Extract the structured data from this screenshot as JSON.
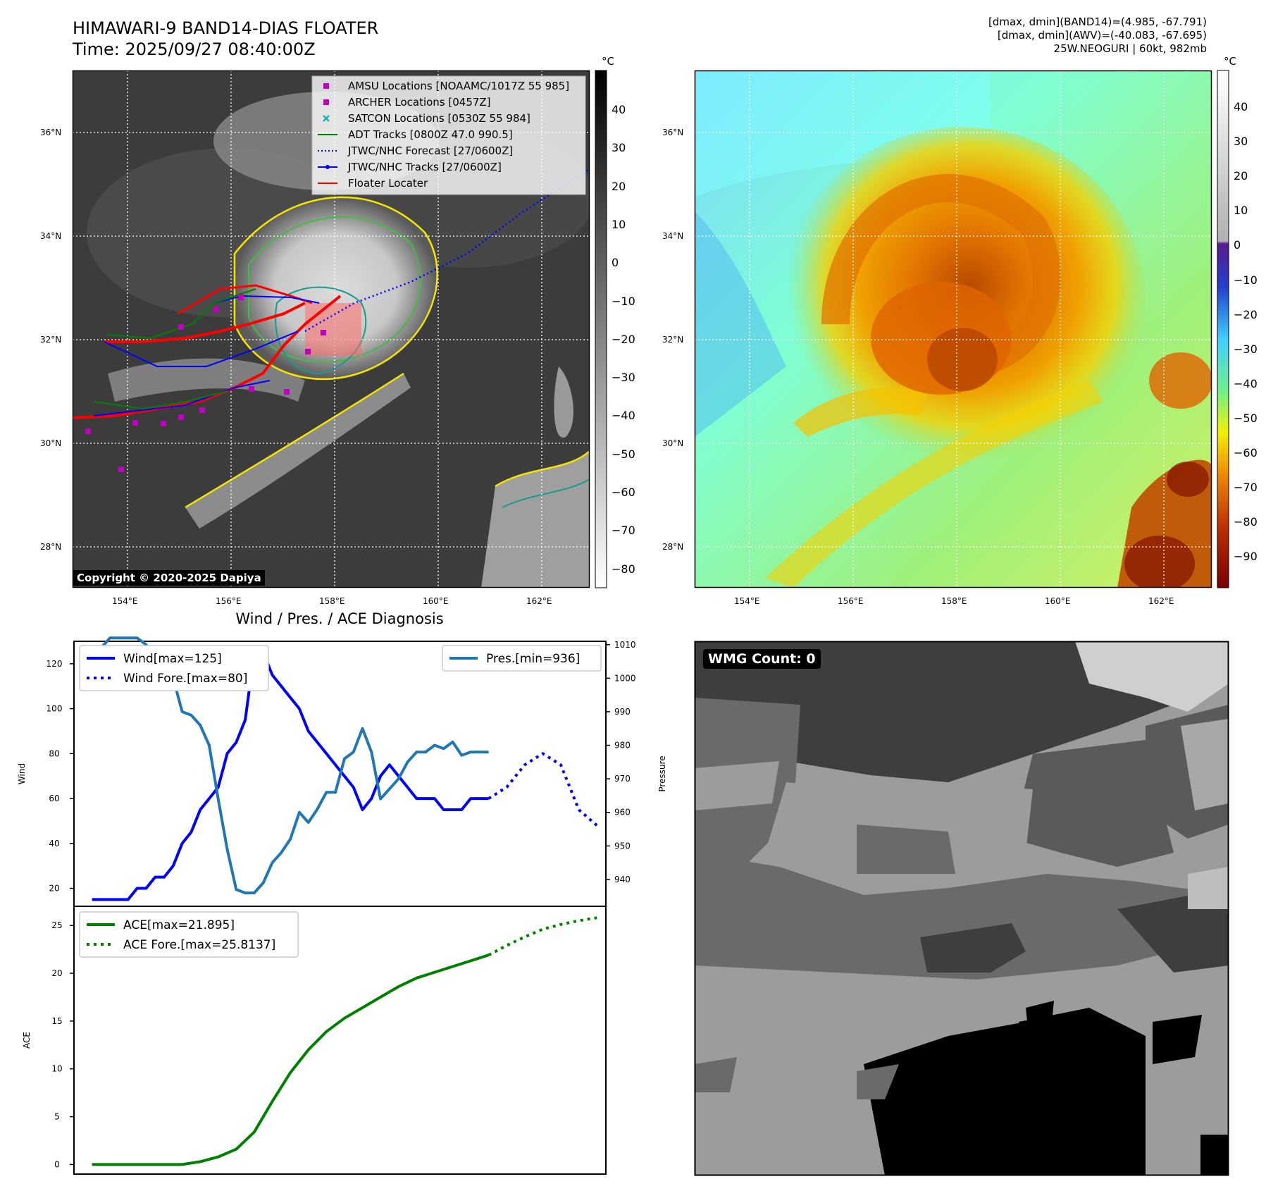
{
  "header": {
    "title_line1": "HIMAWARI-9 BAND14-DIAS FLOATER",
    "title_line2": "Time: 2025/09/27 08:40:00Z",
    "meta_line1": "[dmax, dmin](BAND14)=(4.985, -67.791)",
    "meta_line2": "[dmax, dmin](AWV)=(-40.083, -67.695)",
    "meta_line3": "25W.NEOGURI | 60kt, 982mb"
  },
  "colorbar_left": {
    "unit": "°C",
    "ticks": [
      "40",
      "30",
      "20",
      "10",
      "0",
      "−10",
      "−20",
      "−30",
      "−40",
      "−50",
      "−60",
      "−70",
      "−80"
    ]
  },
  "colorbar_right": {
    "unit": "°C",
    "ticks": [
      "40",
      "30",
      "20",
      "10",
      "0",
      "−10",
      "−20",
      "−30",
      "−40",
      "−50",
      "−60",
      "−70",
      "−80",
      "−90"
    ]
  },
  "map": {
    "lat_labels": [
      "36°N",
      "34°N",
      "32°N",
      "30°N",
      "28°N"
    ],
    "lon_labels": [
      "154°E",
      "156°E",
      "158°E",
      "160°E",
      "162°E"
    ],
    "copyright": "Copyright © 2020-2025 Dapiya",
    "legend": [
      {
        "label": "AMSU Locations [NOAAMC/1017Z 55 985]",
        "color": "#c000c0",
        "marker": "square"
      },
      {
        "label": "ARCHER Locations [0457Z]",
        "color": "#c000c0",
        "marker": "square"
      },
      {
        "label": "SATCON Locations [0530Z 55 984]",
        "color": "#20b0b0",
        "marker": "x"
      },
      {
        "label": "ADT Tracks [0800Z 47.0 990.5]",
        "color": "#008000",
        "marker": "line"
      },
      {
        "label": "JTWC/NHC Forecast [27/0600Z]",
        "color": "#0000ff",
        "marker": "dotted"
      },
      {
        "label": "JTWC/NHC Tracks [27/0600Z]",
        "color": "#0000ff",
        "marker": "line-dot"
      },
      {
        "label": "Floater Locater",
        "color": "#ff0000",
        "marker": "line"
      }
    ]
  },
  "diag": {
    "title": "Wind / Pres. / ACE Diagnosis"
  },
  "wmg": {
    "label": "WMG Count: 0"
  },
  "chart_data": [
    {
      "type": "line",
      "title": "Wind / Pres. / ACE Diagnosis",
      "ylabel": "Wind",
      "y2label": "Pressure",
      "ylim": [
        12,
        130
      ],
      "y2lim": [
        932,
        1011
      ],
      "yticks": [
        20,
        40,
        60,
        80,
        100,
        120
      ],
      "y2ticks": [
        940,
        950,
        960,
        970,
        980,
        990,
        1000,
        1010
      ],
      "series": [
        {
          "name": "Wind[max=125]",
          "axis": "left",
          "style": "solid",
          "color": "#0000ff",
          "x": [
            0,
            1,
            2,
            3,
            4,
            5,
            6,
            7,
            8,
            9,
            10,
            11,
            12,
            13,
            14,
            15,
            16,
            17,
            18,
            19,
            20,
            21,
            22,
            23,
            24,
            25,
            26,
            27,
            28,
            29,
            30,
            31,
            32,
            33,
            34,
            35,
            36,
            37,
            38,
            39,
            40,
            41,
            42,
            43,
            44
          ],
          "values": [
            15,
            15,
            15,
            15,
            15,
            20,
            20,
            25,
            25,
            30,
            40,
            45,
            55,
            60,
            65,
            80,
            85,
            95,
            125,
            125,
            115,
            110,
            105,
            100,
            90,
            85,
            80,
            75,
            70,
            65,
            55,
            60,
            70,
            75,
            70,
            65,
            60,
            60,
            60,
            55,
            55,
            55,
            60,
            60,
            60
          ]
        },
        {
          "name": "Wind Fore.[max=80]",
          "axis": "left",
          "style": "dotted",
          "color": "#0000ff",
          "x": [
            44,
            46,
            48,
            50,
            52,
            54,
            56
          ],
          "values": [
            60,
            65,
            75,
            80,
            75,
            55,
            48
          ]
        },
        {
          "name": "Pres.[min=936]",
          "axis": "right",
          "style": "solid",
          "color": "#1f77b4",
          "x": [
            0,
            1,
            2,
            3,
            4,
            5,
            6,
            7,
            8,
            9,
            10,
            11,
            12,
            13,
            14,
            15,
            16,
            17,
            18,
            19,
            20,
            21,
            22,
            23,
            24,
            25,
            26,
            27,
            28,
            29,
            30,
            31,
            32,
            33,
            34,
            35,
            36,
            37,
            38,
            39,
            40,
            41,
            42,
            43,
            44
          ],
          "values": [
            1009,
            1009,
            1012,
            1012,
            1012,
            1012,
            1010,
            1006,
            1004,
            1000,
            990,
            989,
            986,
            980,
            964,
            949,
            937,
            936,
            936,
            939,
            945,
            948,
            952,
            960,
            957,
            961,
            966,
            966,
            976,
            978,
            985,
            978,
            964,
            967,
            970,
            975,
            978,
            978,
            980,
            979,
            981,
            977,
            978,
            978,
            978
          ]
        },
        {
          "name": "ACE[max=21.895]",
          "axis": "ace",
          "style": "solid",
          "color": "#008000",
          "x": [
            0,
            2,
            4,
            6,
            8,
            10,
            12,
            14,
            16,
            18,
            20,
            22,
            24,
            26,
            28,
            30,
            32,
            34,
            36,
            38,
            40,
            42,
            44
          ],
          "values": [
            0,
            0,
            0,
            0,
            0,
            0,
            0.3,
            0.8,
            1.6,
            3.4,
            6.6,
            9.6,
            12.0,
            13.9,
            15.3,
            16.4,
            17.5,
            18.6,
            19.5,
            20.1,
            20.7,
            21.3,
            21.9
          ]
        },
        {
          "name": "ACE Fore.[max=25.8137]",
          "axis": "ace",
          "style": "dotted",
          "color": "#008000",
          "x": [
            44,
            46,
            48,
            50,
            52,
            54,
            56
          ],
          "values": [
            21.9,
            22.9,
            23.8,
            24.6,
            25.1,
            25.5,
            25.8
          ]
        }
      ],
      "ace_ylabel": "ACE",
      "ace_ylim": [
        -1,
        27
      ],
      "ace_yticks": [
        0,
        5,
        10,
        15,
        20,
        25
      ]
    }
  ]
}
